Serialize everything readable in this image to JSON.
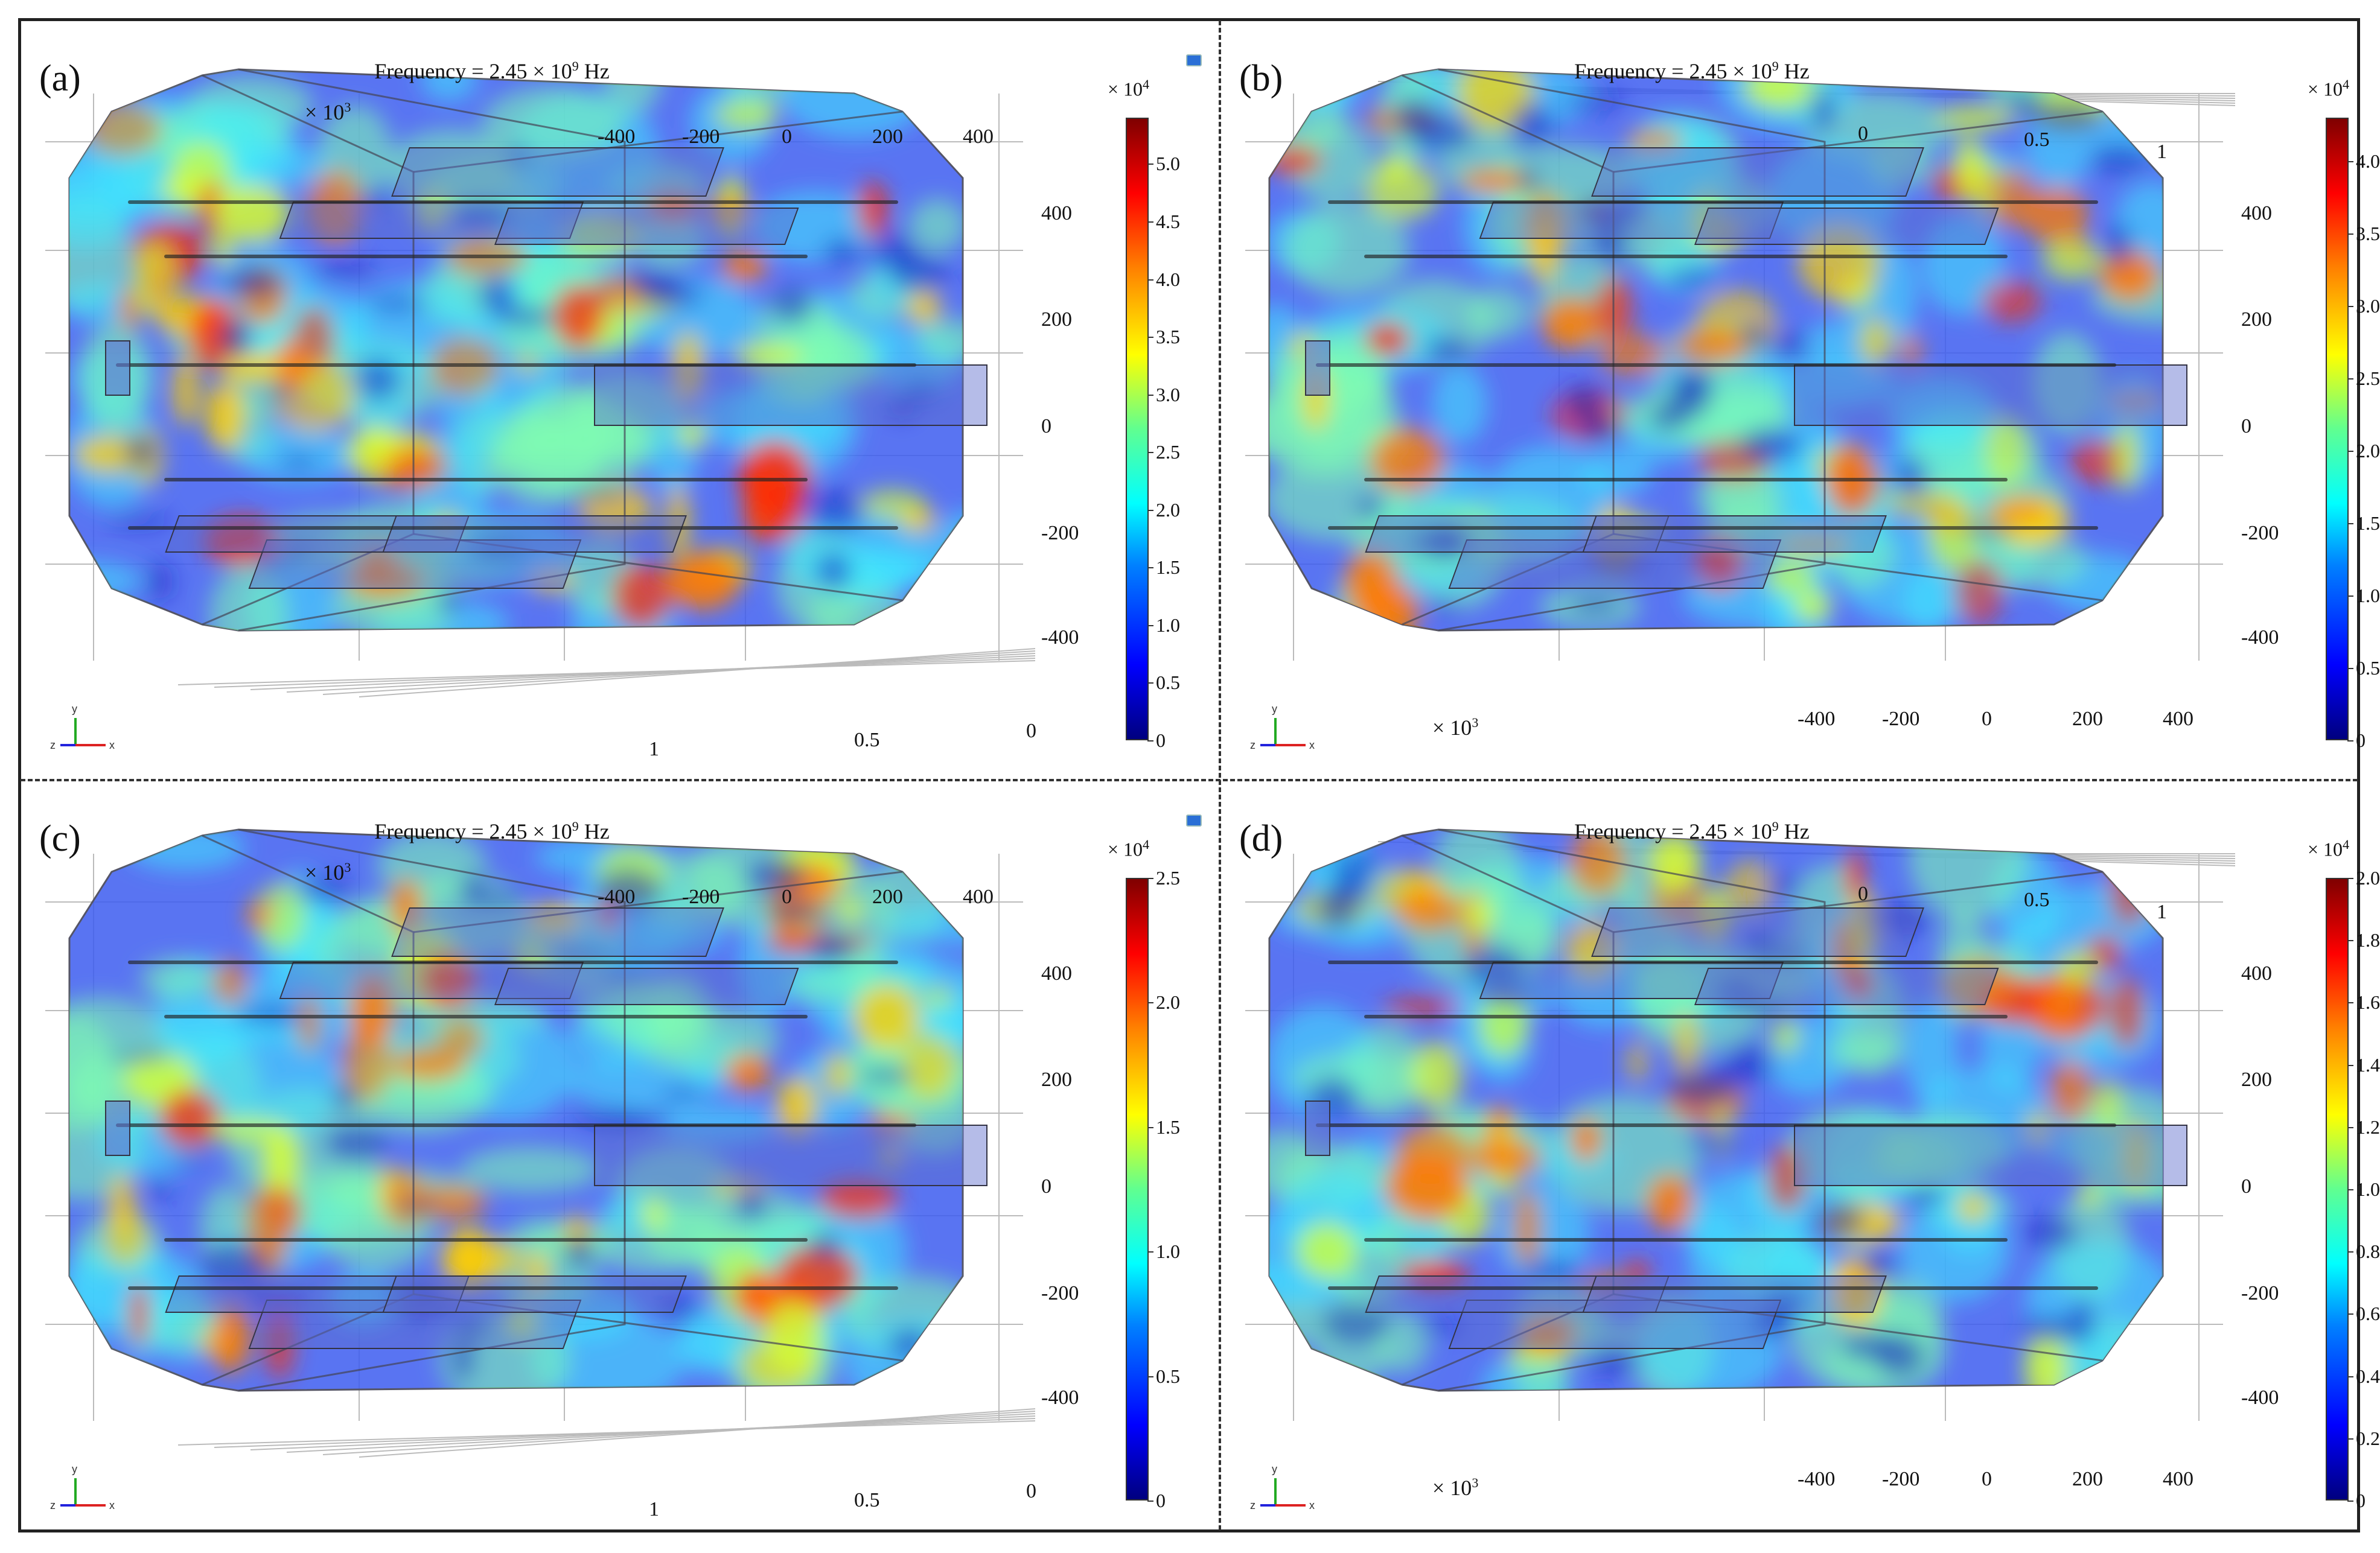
{
  "figure": {
    "panels": [
      {
        "id": "a",
        "label": "(a)",
        "title_prefix": "Frequency = 2.45 × 10",
        "title_exp": "9",
        "title_unit": " Hz",
        "colorbar": {
          "multiplier_base": "× 10",
          "multiplier_exp": "4",
          "max": 5.4,
          "ticks": [
            "0",
            "0.5",
            "1.0",
            "1.5",
            "2.0",
            "2.5",
            "3.0",
            "3.5",
            "4.0",
            "4.5",
            "5.0"
          ]
        },
        "axis_scale": {
          "base": "× 10",
          "exp": "3"
        },
        "x_ticks": [
          "-400",
          "-200",
          "0",
          "200",
          "400"
        ],
        "y_ticks": [
          "400",
          "200",
          "0",
          "-200",
          "-400"
        ],
        "z_ticks": [
          "0",
          "0.5",
          "1"
        ],
        "orientation": "x-top"
      },
      {
        "id": "b",
        "label": "(b)",
        "title_prefix": "Frequency = 2.45 × 10",
        "title_exp": "9",
        "title_unit": " Hz",
        "colorbar": {
          "multiplier_base": "× 10",
          "multiplier_exp": "4",
          "max": 4.3,
          "ticks": [
            "0",
            "0.5",
            "1.0",
            "1.5",
            "2.0",
            "2.5",
            "3.0",
            "3.5",
            "4.0"
          ]
        },
        "axis_scale": {
          "base": "× 10",
          "exp": "3"
        },
        "x_ticks": [
          "-400",
          "-200",
          "0",
          "200",
          "400"
        ],
        "y_ticks": [
          "400",
          "200",
          "0",
          "-200",
          "-400"
        ],
        "z_ticks": [
          "1",
          "0.5",
          "0"
        ],
        "orientation": "x-bottom"
      },
      {
        "id": "c",
        "label": "(c)",
        "title_prefix": "Frequency = 2.45 × 10",
        "title_exp": "9",
        "title_unit": " Hz",
        "colorbar": {
          "multiplier_base": "× 10",
          "multiplier_exp": "4",
          "max": 2.5,
          "ticks": [
            "0",
            "0.5",
            "1.0",
            "1.5",
            "2.0",
            "2.5"
          ]
        },
        "axis_scale": {
          "base": "× 10",
          "exp": "3"
        },
        "x_ticks": [
          "-400",
          "-200",
          "0",
          "200",
          "400"
        ],
        "y_ticks": [
          "400",
          "200",
          "0",
          "-200",
          "-400"
        ],
        "z_ticks": [
          "0",
          "0.5",
          "1"
        ],
        "orientation": "x-top"
      },
      {
        "id": "d",
        "label": "(d)",
        "title_prefix": "Frequency = 2.45 × 10",
        "title_exp": "9",
        "title_unit": " Hz",
        "colorbar": {
          "multiplier_base": "× 10",
          "multiplier_exp": "4",
          "max": 2.0,
          "ticks": [
            "0",
            "0.2",
            "0.4",
            "0.6",
            "0.8",
            "1.0",
            "1.2",
            "1.4",
            "1.6",
            "1.8",
            "2.0"
          ]
        },
        "axis_scale": {
          "base": "× 10",
          "exp": "3"
        },
        "x_ticks": [
          "-400",
          "-200",
          "0",
          "200",
          "400"
        ],
        "y_ticks": [
          "400",
          "200",
          "0",
          "-200",
          "-400"
        ],
        "z_ticks": [
          "1",
          "0.5",
          "0"
        ],
        "orientation": "x-bottom"
      }
    ],
    "triad": {
      "y": "y",
      "z": "z",
      "x": "x"
    },
    "colors": {
      "field_low": "#2a3cff",
      "field_mid": "#40e0d0",
      "field_high": "#ff2a00",
      "edge": "#334",
      "frame": "#222"
    }
  }
}
